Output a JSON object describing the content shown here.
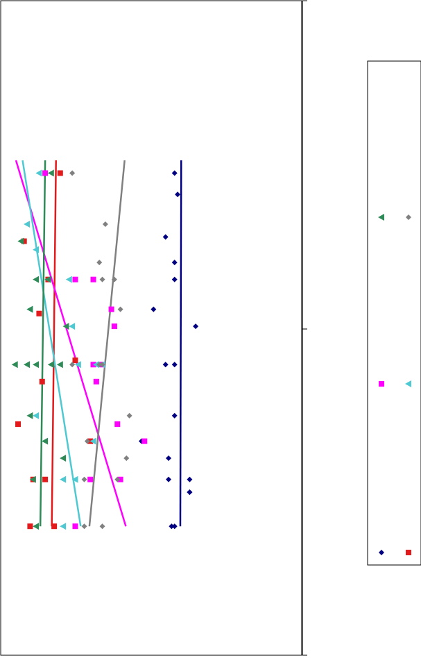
{
  "chart_data": {
    "type": "scatter",
    "title": "",
    "xlabel": "",
    "ylabel": "",
    "orientation": "rotated-90",
    "grid": false,
    "legend_position": "right",
    "xlim": [
      0,
      10
    ],
    "ylim": [
      0,
      100
    ],
    "series": [
      {
        "color": "#000080",
        "marker": "diamond",
        "x": [
          1.1,
          1.6,
          2.6,
          3.2,
          3.6,
          4.3,
          4.7,
          5.6,
          5.6,
          6.8,
          7.4,
          7.8,
          8.3,
          8.3,
          8.6,
          8.6,
          9.4,
          9.4
        ],
        "y": [
          58,
          59,
          55,
          58,
          58,
          51,
          65,
          58,
          55,
          58,
          47,
          56,
          56,
          63,
          63,
          63,
          57,
          58
        ],
        "trend": [
          [
            0.8,
            60.2
          ],
          [
            9.4,
            59.9
          ]
        ]
      },
      {
        "color": "#E31A1C",
        "marker": "square",
        "x": [
          1.1,
          2.7,
          3.6,
          4.4,
          5.5,
          6.0,
          7.0,
          7.4,
          8.3,
          8.3,
          9.4,
          9.4
        ],
        "y": [
          20,
          8,
          16,
          13,
          25,
          14,
          6,
          30,
          11,
          15,
          10,
          18
        ],
        "trend": [
          [
            0.8,
            18.6
          ],
          [
            9.4,
            17.2
          ]
        ]
      },
      {
        "color": "#FF00FF",
        "marker": "square",
        "x": [
          1.1,
          3.6,
          3.6,
          4.3,
          4.7,
          5.6,
          5.6,
          6.0,
          7.0,
          7.4,
          8.3,
          8.3,
          9.4
        ],
        "y": [
          15,
          25,
          31,
          37,
          38,
          31,
          34,
          32,
          39,
          48,
          30,
          40,
          25
        ],
        "trend": [
          [
            0.8,
            5.3
          ],
          [
            9.4,
            41.8
          ]
        ]
      },
      {
        "color": "#4FC9D1",
        "marker": "triangle-left",
        "x": [
          1.1,
          2.3,
          2.9,
          3.6,
          3.6,
          4.3,
          4.7,
          5.6,
          5.6,
          5.6,
          6.8,
          7.4,
          8.3,
          8.3,
          9.4
        ],
        "y": [
          13,
          9,
          12,
          16,
          23,
          10,
          24,
          26,
          32,
          34,
          12,
          31,
          21,
          25,
          21
        ],
        "trend": [
          [
            0.8,
            7.5
          ],
          [
            9.4,
            26.8
          ]
        ]
      },
      {
        "color": "#808080",
        "marker": "diamond",
        "x": [
          1.1,
          2.3,
          3.2,
          3.6,
          3.6,
          4.3,
          5.6,
          5.6,
          5.6,
          6.8,
          7.4,
          7.8,
          8.3,
          8.3,
          9.4,
          9.4
        ],
        "y": [
          24,
          35,
          33,
          38,
          34,
          40,
          24,
          33,
          34,
          43,
          29,
          42,
          39,
          28,
          34,
          28
        ],
        "trend": [
          [
            0.8,
            41.4
          ],
          [
            9.4,
            29.7
          ]
        ]
      },
      {
        "color": "#2E8B57",
        "marker": "triangle-left",
        "x": [
          1.1,
          2.7,
          3.6,
          3.6,
          4.3,
          4.7,
          5.6,
          5.6,
          5.6,
          5.6,
          5.6,
          6.8,
          7.4,
          7.8,
          8.3,
          9.4
        ],
        "y": [
          17,
          7,
          16,
          12,
          10,
          22,
          5,
          12,
          20,
          9,
          17,
          10,
          15,
          21,
          11,
          12
        ],
        "trend": [
          [
            0.8,
            15.0
          ],
          [
            9.4,
            13.4
          ]
        ]
      }
    ],
    "legend": {
      "rows": [
        [
          {
            "color": "#2E8B57",
            "marker": "triangle-left"
          },
          {
            "color": "#808080",
            "marker": "diamond"
          }
        ],
        [
          {
            "color": "#FF00FF",
            "marker": "square"
          },
          {
            "color": "#4FC9D1",
            "marker": "triangle-left"
          }
        ],
        [
          {
            "color": "#000080",
            "marker": "diamond"
          },
          {
            "color": "#E31A1C",
            "marker": "square"
          }
        ]
      ]
    }
  }
}
